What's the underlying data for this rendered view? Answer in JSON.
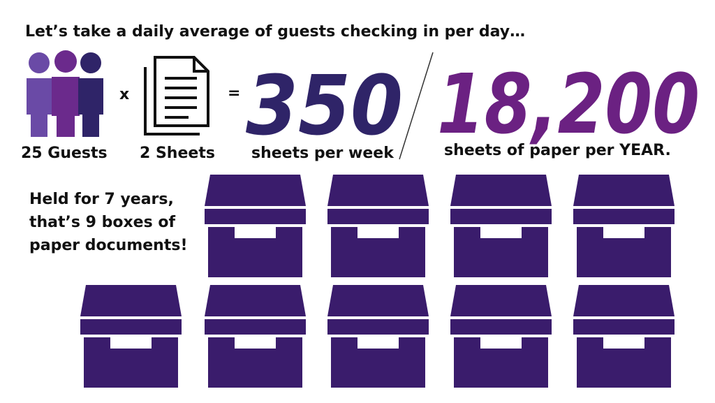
{
  "header": {
    "title": "Let’s take a daily average of guests checking in per day…"
  },
  "equation": {
    "guests_label": "25 Guests",
    "times": "x",
    "sheets_label": "2 Sheets",
    "equals": "=",
    "weekly_value": "350",
    "weekly_caption": "sheets per week",
    "yearly_value": "18,200",
    "yearly_caption": "sheets of paper per YEAR."
  },
  "retention": {
    "lines": [
      "Held for 7 years,",
      "that’s 9 boxes of",
      "paper documents!"
    ]
  }
}
